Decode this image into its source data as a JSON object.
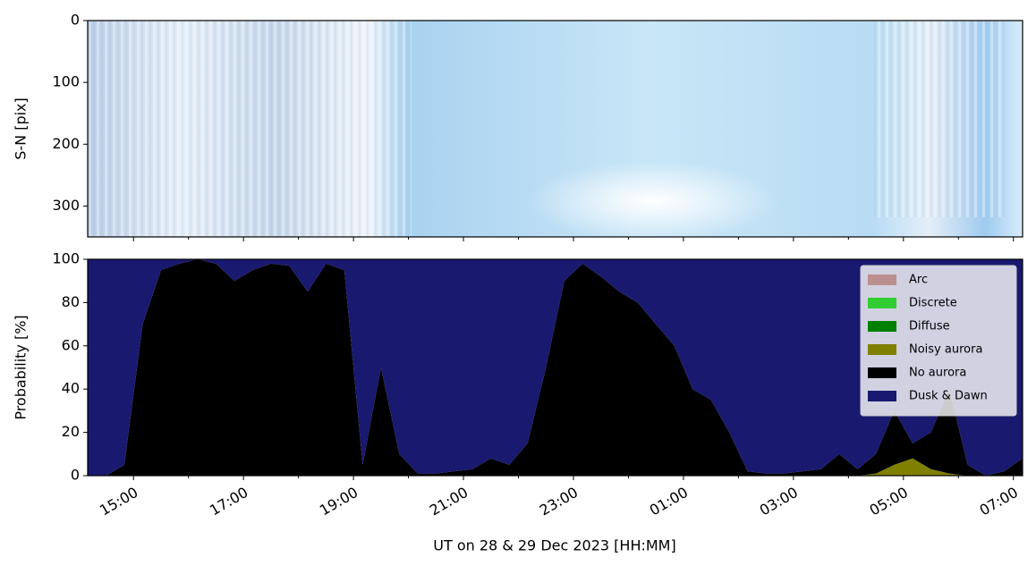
{
  "chart_data": [
    {
      "type": "image",
      "ylabel": "S-N [pix]",
      "ylim": [
        350,
        0
      ],
      "yticks": [
        0,
        100,
        200,
        300
      ]
    },
    {
      "type": "stacked_area",
      "ylabel": "Probability [%]",
      "xlabel": "UT on 28 & 29 Dec 2023 [HH:MM]",
      "x": [
        "14:10",
        "14:30",
        "14:50",
        "15:10",
        "15:30",
        "15:50",
        "16:10",
        "16:30",
        "16:50",
        "17:10",
        "17:30",
        "17:50",
        "18:10",
        "18:30",
        "18:50",
        "19:10",
        "19:30",
        "19:50",
        "20:10",
        "20:30",
        "20:50",
        "21:10",
        "21:30",
        "21:50",
        "22:10",
        "22:30",
        "22:50",
        "23:10",
        "23:30",
        "23:50",
        "00:10",
        "00:30",
        "00:50",
        "01:10",
        "01:30",
        "01:50",
        "02:10",
        "02:30",
        "02:50",
        "03:10",
        "03:30",
        "03:50",
        "04:10",
        "04:30",
        "04:50",
        "05:10",
        "05:30",
        "05:50",
        "06:10",
        "06:30",
        "06:50",
        "07:10"
      ],
      "series": [
        {
          "name": "Arc",
          "color": "#bc8f8f",
          "values": [
            0,
            0,
            0,
            0,
            0,
            0,
            0,
            0,
            0,
            0,
            0,
            0,
            0,
            0,
            0,
            0,
            0,
            0,
            0,
            0,
            0,
            0,
            0,
            0,
            0,
            0,
            0,
            0,
            0,
            0,
            0,
            0,
            0,
            0,
            0,
            0,
            0,
            0,
            0,
            0,
            0,
            0,
            0,
            0,
            0,
            0,
            0,
            0,
            0,
            0,
            0,
            0
          ]
        },
        {
          "name": "Discrete",
          "color": "#32cd32",
          "values": [
            0,
            0,
            0,
            0,
            0,
            0,
            0,
            0,
            0,
            0,
            0,
            0,
            0,
            0,
            0,
            0,
            0,
            0,
            0,
            0,
            0,
            0,
            0,
            0,
            0,
            0,
            0,
            0,
            0,
            0,
            0,
            0,
            0,
            0,
            0,
            0,
            0,
            0,
            0,
            0,
            0,
            0,
            0,
            0,
            0,
            0,
            0,
            0,
            0,
            0,
            0,
            0
          ]
        },
        {
          "name": "Diffuse",
          "color": "#008000",
          "values": [
            0,
            0,
            0,
            0,
            0,
            0,
            0,
            0,
            0,
            0,
            0,
            0,
            0,
            0,
            0,
            0,
            0,
            0,
            0,
            0,
            0,
            0,
            0,
            0,
            0,
            0,
            0,
            0,
            0,
            0,
            0,
            0,
            0,
            0,
            0,
            0,
            0,
            0,
            0,
            0,
            0,
            0,
            0,
            0,
            0,
            0,
            0,
            0,
            0,
            0,
            0,
            0
          ]
        },
        {
          "name": "Noisy aurora",
          "color": "#808000",
          "values": [
            0,
            0,
            0,
            0,
            0,
            0,
            0,
            0,
            0,
            0,
            0,
            0,
            0,
            0,
            0,
            0,
            0,
            0,
            0,
            0,
            0,
            0,
            0,
            0,
            0,
            0,
            0,
            0,
            0,
            0,
            0,
            0,
            0,
            0,
            0,
            0,
            0,
            0,
            0,
            0,
            0,
            0,
            0,
            1,
            5,
            8,
            3,
            1,
            0,
            0,
            0,
            0
          ]
        },
        {
          "name": "No aurora",
          "color": "#000000",
          "values": [
            0,
            0,
            5,
            70,
            95,
            98,
            100,
            98,
            90,
            95,
            98,
            97,
            85,
            98,
            95,
            5,
            50,
            10,
            1,
            1,
            2,
            3,
            8,
            5,
            15,
            50,
            90,
            98,
            92,
            85,
            80,
            70,
            60,
            40,
            35,
            20,
            2,
            1,
            1,
            2,
            3,
            10,
            3,
            9,
            25,
            7,
            17,
            39,
            5,
            0,
            2,
            8
          ]
        },
        {
          "name": "Dusk & Dawn",
          "color": "#191970",
          "values": [
            100,
            100,
            95,
            30,
            5,
            2,
            0,
            2,
            10,
            5,
            2,
            3,
            15,
            2,
            5,
            95,
            50,
            90,
            99,
            99,
            98,
            97,
            92,
            95,
            85,
            50,
            10,
            2,
            8,
            15,
            20,
            30,
            40,
            60,
            65,
            80,
            98,
            99,
            99,
            98,
            97,
            90,
            97,
            90,
            70,
            85,
            80,
            60,
            95,
            100,
            98,
            92
          ]
        }
      ],
      "xlim": [
        "14:10",
        "07:10"
      ],
      "xticks": [
        "15:00",
        "17:00",
        "19:00",
        "21:00",
        "23:00",
        "01:00",
        "03:00",
        "05:00",
        "07:00"
      ],
      "xminorticks": [
        "16:00",
        "18:00",
        "20:00",
        "22:00",
        "00:00",
        "02:00",
        "04:00",
        "06:00"
      ],
      "ylim": [
        0,
        100
      ],
      "yticks": [
        0,
        20,
        40,
        60,
        80,
        100
      ],
      "legend": "upper right"
    }
  ]
}
